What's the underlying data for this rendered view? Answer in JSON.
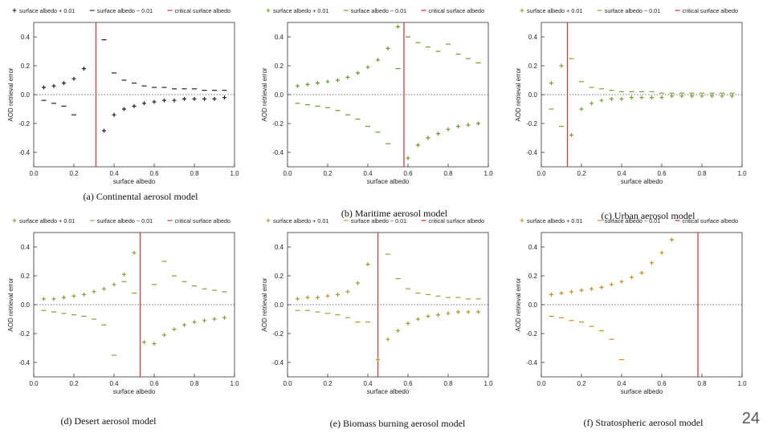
{
  "page": {
    "number": "24"
  },
  "chart_data": [
    {
      "type": "scatter",
      "caption": "(a)  Continental aerosol model",
      "xlabel": "surface albedo",
      "ylabel": "AOD retrieval error",
      "xlim": [
        0,
        1
      ],
      "ylim": [
        -0.5,
        0.5
      ],
      "xticks": [
        0,
        0.2,
        0.4,
        0.6,
        0.8,
        1.0
      ],
      "yticks": [
        -0.4,
        -0.2,
        0.0,
        0.2,
        0.4
      ],
      "xtick_labels": [
        "0.0",
        "0.2",
        "0.4",
        "0.6",
        "0.8",
        "1.0"
      ],
      "ytick_labels": [
        "-0.4",
        "-0.2",
        "0.0",
        "0.2",
        "0.4"
      ],
      "marker_color": "#222222",
      "critical_albedo": 0.31,
      "legend": [
        "surface albedo + 0.01",
        "surface albedo − 0.01",
        "critical surface albedo"
      ],
      "series": [
        {
          "name": "surface albedo + 0.01",
          "marker": "plus",
          "x": [
            0.05,
            0.1,
            0.15,
            0.2,
            0.25,
            0.35,
            0.4,
            0.45,
            0.5,
            0.55,
            0.6,
            0.65,
            0.7,
            0.75,
            0.8,
            0.85,
            0.9,
            0.95
          ],
          "y": [
            0.05,
            0.06,
            0.08,
            0.11,
            0.18,
            -0.25,
            -0.14,
            -0.1,
            -0.08,
            -0.06,
            -0.05,
            -0.04,
            -0.04,
            -0.03,
            -0.03,
            -0.03,
            -0.03,
            -0.02
          ]
        },
        {
          "name": "surface albedo − 0.01",
          "marker": "dash",
          "x": [
            0.05,
            0.1,
            0.15,
            0.2,
            0.35,
            0.4,
            0.45,
            0.5,
            0.55,
            0.6,
            0.65,
            0.7,
            0.75,
            0.8,
            0.85,
            0.9,
            0.95
          ],
          "y": [
            -0.04,
            -0.06,
            -0.08,
            -0.14,
            0.38,
            0.15,
            0.1,
            0.08,
            0.06,
            0.05,
            0.05,
            0.04,
            0.04,
            0.04,
            0.03,
            0.03,
            0.03
          ]
        }
      ]
    },
    {
      "type": "scatter",
      "caption": "(b)  Maritime aerosol model",
      "xlabel": "surface albedo",
      "ylabel": "AOD retrieval error",
      "xlim": [
        0,
        1
      ],
      "ylim": [
        -0.5,
        0.5
      ],
      "xticks": [
        0,
        0.2,
        0.4,
        0.6,
        0.8,
        1.0
      ],
      "yticks": [
        -0.4,
        -0.2,
        0.0,
        0.2,
        0.4
      ],
      "xtick_labels": [
        "0.0",
        "0.2",
        "0.4",
        "0.6",
        "0.8",
        "1.0"
      ],
      "ytick_labels": [
        "-0.4",
        "-0.2",
        "0.0",
        "0.2",
        "0.4"
      ],
      "marker_color": "#6b9a2a",
      "critical_albedo": 0.58,
      "legend": [
        "surface albedo + 0.01",
        "surface albedo − 0.01",
        "critical surface albedo"
      ],
      "series": [
        {
          "name": "surface albedo + 0.01",
          "marker": "plus",
          "x": [
            0.05,
            0.1,
            0.15,
            0.2,
            0.25,
            0.3,
            0.35,
            0.4,
            0.45,
            0.5,
            0.55,
            0.6,
            0.65,
            0.7,
            0.75,
            0.8,
            0.85,
            0.9,
            0.95
          ],
          "y": [
            0.06,
            0.07,
            0.08,
            0.09,
            0.1,
            0.12,
            0.15,
            0.19,
            0.24,
            0.32,
            0.47,
            -0.44,
            -0.35,
            -0.3,
            -0.27,
            -0.24,
            -0.22,
            -0.21,
            -0.2
          ]
        },
        {
          "name": "surface albedo − 0.01",
          "marker": "dash",
          "x": [
            0.05,
            0.1,
            0.15,
            0.2,
            0.25,
            0.3,
            0.35,
            0.4,
            0.45,
            0.5,
            0.55,
            0.6,
            0.65,
            0.7,
            0.75,
            0.8,
            0.85,
            0.9,
            0.95
          ],
          "y": [
            -0.06,
            -0.07,
            -0.08,
            -0.09,
            -0.11,
            -0.14,
            -0.17,
            -0.22,
            -0.26,
            -0.34,
            0.18,
            0.4,
            0.36,
            0.33,
            0.3,
            0.35,
            0.28,
            0.25,
            0.22
          ]
        }
      ]
    },
    {
      "type": "scatter",
      "caption": "(c)  Urban aerosol model",
      "xlabel": "surface albedo",
      "ylabel": "AOD retrieval error",
      "xlim": [
        0,
        1
      ],
      "ylim": [
        -0.5,
        0.5
      ],
      "xticks": [
        0,
        0.2,
        0.4,
        0.6,
        0.8,
        1.0
      ],
      "yticks": [
        -0.4,
        -0.2,
        0.0,
        0.2,
        0.4
      ],
      "xtick_labels": [
        "0.0",
        "0.2",
        "0.4",
        "0.6",
        "0.8",
        "1.0"
      ],
      "ytick_labels": [
        "-0.4",
        "-0.2",
        "0.0",
        "0.2",
        "0.4"
      ],
      "marker_color": "#7aa336",
      "critical_albedo": 0.13,
      "legend": [
        "surface albedo + 0.01",
        "surface albedo − 0.01",
        "critical surface albedo"
      ],
      "series": [
        {
          "name": "surface albedo + 0.01",
          "marker": "plus",
          "x": [
            0.05,
            0.1,
            0.15,
            0.2,
            0.25,
            0.3,
            0.35,
            0.4,
            0.45,
            0.5,
            0.55,
            0.6,
            0.65,
            0.7,
            0.75,
            0.8,
            0.85,
            0.9,
            0.95
          ],
          "y": [
            0.08,
            0.2,
            -0.28,
            -0.1,
            -0.06,
            -0.04,
            -0.03,
            -0.03,
            -0.02,
            -0.02,
            -0.02,
            -0.02,
            -0.01,
            -0.01,
            -0.01,
            -0.01,
            -0.01,
            -0.01,
            -0.01
          ]
        },
        {
          "name": "surface albedo − 0.01",
          "marker": "dash",
          "x": [
            0.05,
            0.1,
            0.15,
            0.2,
            0.25,
            0.3,
            0.35,
            0.4,
            0.45,
            0.5,
            0.55,
            0.6,
            0.65,
            0.7,
            0.75,
            0.8,
            0.85,
            0.9,
            0.95
          ],
          "y": [
            -0.1,
            -0.22,
            0.25,
            0.09,
            0.05,
            0.04,
            0.03,
            0.02,
            0.02,
            0.02,
            0.02,
            0.01,
            0.01,
            0.01,
            0.01,
            0.01,
            0.01,
            0.01,
            0.01
          ]
        }
      ]
    },
    {
      "type": "scatter",
      "caption": "(d)  Desert aerosol model",
      "xlabel": "surface albedo",
      "ylabel": "AOD retrieval error",
      "xlim": [
        0,
        1
      ],
      "ylim": [
        -0.5,
        0.5
      ],
      "xticks": [
        0,
        0.2,
        0.4,
        0.6,
        0.8,
        1.0
      ],
      "yticks": [
        -0.4,
        -0.2,
        0.0,
        0.2,
        0.4
      ],
      "xtick_labels": [
        "0.0",
        "0.2",
        "0.4",
        "0.6",
        "0.8",
        "1.0"
      ],
      "ytick_labels": [
        "-0.4",
        "-0.2",
        "0.0",
        "0.2",
        "0.4"
      ],
      "marker_color": "#8a9a3a",
      "critical_albedo": 0.53,
      "legend": [
        "surface albedo + 0.01",
        "surface albedo − 0.01",
        "critical surface albedo"
      ],
      "series": [
        {
          "name": "surface albedo + 0.01",
          "marker": "plus",
          "x": [
            0.05,
            0.1,
            0.15,
            0.2,
            0.25,
            0.3,
            0.35,
            0.4,
            0.45,
            0.5,
            0.55,
            0.6,
            0.65,
            0.7,
            0.75,
            0.8,
            0.85,
            0.9,
            0.95
          ],
          "y": [
            0.04,
            0.04,
            0.05,
            0.06,
            0.07,
            0.09,
            0.11,
            0.14,
            0.21,
            0.36,
            -0.26,
            -0.27,
            -0.21,
            -0.17,
            -0.14,
            -0.12,
            -0.11,
            -0.1,
            -0.09
          ]
        },
        {
          "name": "surface albedo − 0.01",
          "marker": "dash",
          "x": [
            0.05,
            0.1,
            0.15,
            0.2,
            0.25,
            0.3,
            0.35,
            0.4,
            0.45,
            0.5,
            0.6,
            0.65,
            0.7,
            0.75,
            0.8,
            0.85,
            0.9,
            0.95
          ],
          "y": [
            -0.04,
            -0.05,
            -0.06,
            -0.07,
            -0.08,
            -0.1,
            -0.14,
            -0.35,
            0.16,
            0.08,
            0.14,
            0.3,
            0.2,
            0.16,
            0.13,
            0.11,
            0.1,
            0.09
          ]
        }
      ]
    },
    {
      "type": "scatter",
      "caption": "(e)  Biomass burning aerosol model",
      "xlabel": "surface albedo",
      "ylabel": "AOD retrieval error",
      "xlim": [
        0,
        1
      ],
      "ylim": [
        -0.5,
        0.5
      ],
      "xticks": [
        0,
        0.2,
        0.4,
        0.6,
        0.8,
        1.0
      ],
      "yticks": [
        -0.4,
        -0.2,
        0.0,
        0.2,
        0.4
      ],
      "xtick_labels": [
        "0.0",
        "0.2",
        "0.4",
        "0.6",
        "0.8",
        "1.0"
      ],
      "ytick_labels": [
        "-0.4",
        "-0.2",
        "0.0",
        "0.2",
        "0.4"
      ],
      "marker_color": "#a89a2e",
      "critical_albedo": 0.45,
      "legend": [
        "surface albedo + 0.01",
        "surface albedo − 0.01",
        "critical surface albedo"
      ],
      "series": [
        {
          "name": "surface albedo + 0.01",
          "marker": "plus",
          "x": [
            0.05,
            0.1,
            0.15,
            0.2,
            0.25,
            0.3,
            0.35,
            0.4,
            0.45,
            0.5,
            0.55,
            0.6,
            0.65,
            0.7,
            0.75,
            0.8,
            0.85,
            0.9,
            0.95
          ],
          "y": [
            0.04,
            0.05,
            0.05,
            0.06,
            0.07,
            0.09,
            0.15,
            0.28,
            -0.38,
            -0.24,
            -0.18,
            -0.13,
            -0.1,
            -0.08,
            -0.07,
            -0.06,
            -0.05,
            -0.05,
            -0.05
          ]
        },
        {
          "name": "surface albedo − 0.01",
          "marker": "dash",
          "x": [
            0.05,
            0.1,
            0.15,
            0.2,
            0.25,
            0.3,
            0.35,
            0.4,
            0.5,
            0.55,
            0.6,
            0.65,
            0.7,
            0.75,
            0.8,
            0.85,
            0.9,
            0.95
          ],
          "y": [
            -0.04,
            -0.04,
            -0.05,
            -0.06,
            -0.07,
            -0.09,
            -0.12,
            -0.12,
            0.35,
            0.18,
            0.11,
            0.08,
            0.07,
            0.06,
            0.05,
            0.05,
            0.04,
            0.04
          ]
        }
      ]
    },
    {
      "type": "scatter",
      "caption": "(f)  Stratospheric aerosol model",
      "xlabel": "surface albedo",
      "ylabel": "AOD retrieval error",
      "xlim": [
        0,
        1
      ],
      "ylim": [
        -0.5,
        0.5
      ],
      "xticks": [
        0,
        0.2,
        0.4,
        0.6,
        0.8,
        1.0
      ],
      "yticks": [
        -0.4,
        -0.2,
        0.0,
        0.2,
        0.4
      ],
      "xtick_labels": [
        "0.0",
        "0.2",
        "0.4",
        "0.6",
        "0.8",
        "1.0"
      ],
      "ytick_labels": [
        "-0.4",
        "-0.2",
        "0.0",
        "0.2",
        "0.4"
      ],
      "marker_color": "#d08a1e",
      "critical_albedo": 0.78,
      "legend": [
        "surface albedo + 0.01",
        "surface albedo − 0.01",
        "critical surface albedo"
      ],
      "series": [
        {
          "name": "surface albedo + 0.01",
          "marker": "plus",
          "x": [
            0.05,
            0.1,
            0.15,
            0.2,
            0.25,
            0.3,
            0.35,
            0.4,
            0.45,
            0.5,
            0.55,
            0.6,
            0.65
          ],
          "y": [
            0.07,
            0.08,
            0.09,
            0.1,
            0.11,
            0.12,
            0.14,
            0.16,
            0.19,
            0.22,
            0.29,
            0.36,
            0.45
          ]
        },
        {
          "name": "surface albedo − 0.01",
          "marker": "dash",
          "x": [
            0.05,
            0.1,
            0.15,
            0.2,
            0.25,
            0.3,
            0.35,
            0.4
          ],
          "y": [
            -0.08,
            -0.09,
            -0.11,
            -0.12,
            -0.15,
            -0.18,
            -0.24,
            -0.38
          ]
        }
      ]
    }
  ]
}
